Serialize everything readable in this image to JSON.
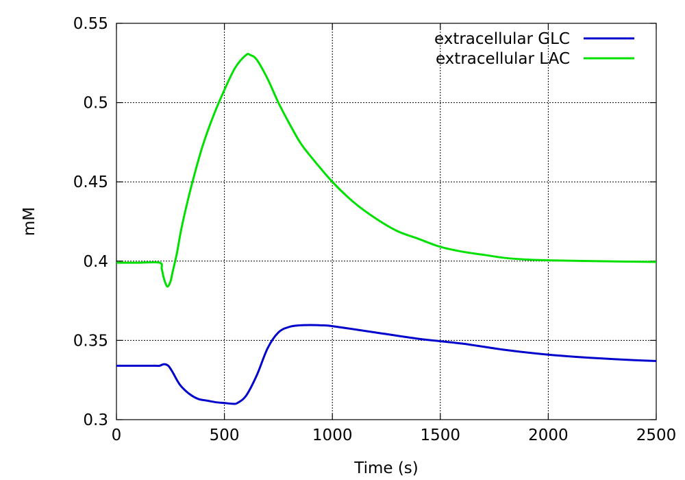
{
  "chart_data": {
    "type": "line",
    "title": "",
    "xlabel": "Time (s)",
    "ylabel": "mM",
    "xlim": [
      0,
      2500
    ],
    "ylim": [
      0.3,
      0.55
    ],
    "xticks": [
      0,
      500,
      1000,
      1500,
      2000,
      2500
    ],
    "yticks": [
      0.3,
      0.35,
      0.4,
      0.45,
      0.5,
      0.55
    ],
    "xtick_labels": [
      "0",
      "500",
      "1000",
      "1500",
      "2000",
      "2500"
    ],
    "ytick_labels": [
      "0.3",
      "0.35",
      "0.4",
      "0.45",
      "0.5",
      "0.55"
    ],
    "grid": true,
    "legend_position": "top-right",
    "series": [
      {
        "name": "extracellular GLC",
        "color": "#0000cc",
        "x": [
          0,
          100,
          180,
          200,
          220,
          240,
          260,
          280,
          300,
          340,
          380,
          420,
          460,
          500,
          540,
          560,
          600,
          650,
          700,
          750,
          800,
          850,
          900,
          950,
          1000,
          1200,
          1400,
          1600,
          1800,
          2000,
          2200,
          2400,
          2500
        ],
        "y": [
          0.334,
          0.334,
          0.334,
          0.334,
          0.335,
          0.334,
          0.33,
          0.325,
          0.321,
          0.316,
          0.313,
          0.312,
          0.311,
          0.3105,
          0.31,
          0.3105,
          0.315,
          0.328,
          0.345,
          0.355,
          0.3585,
          0.3595,
          0.3597,
          0.3595,
          0.359,
          0.355,
          0.351,
          0.348,
          0.344,
          0.341,
          0.339,
          0.3375,
          0.337
        ]
      },
      {
        "name": "extracellular LAC",
        "color": "#00e000",
        "x": [
          0,
          100,
          200,
          210,
          220,
          235,
          250,
          260,
          280,
          300,
          330,
          360,
          400,
          450,
          500,
          550,
          600,
          620,
          650,
          700,
          750,
          800,
          850,
          900,
          1000,
          1100,
          1200,
          1300,
          1400,
          1500,
          1600,
          1700,
          1800,
          1900,
          2000,
          2200,
          2500
        ],
        "y": [
          0.399,
          0.399,
          0.399,
          0.395,
          0.389,
          0.384,
          0.387,
          0.393,
          0.405,
          0.42,
          0.438,
          0.454,
          0.473,
          0.492,
          0.508,
          0.522,
          0.53,
          0.53,
          0.527,
          0.515,
          0.5,
          0.487,
          0.475,
          0.466,
          0.45,
          0.437,
          0.427,
          0.419,
          0.414,
          0.409,
          0.406,
          0.404,
          0.402,
          0.401,
          0.4005,
          0.4,
          0.3995
        ]
      }
    ]
  }
}
